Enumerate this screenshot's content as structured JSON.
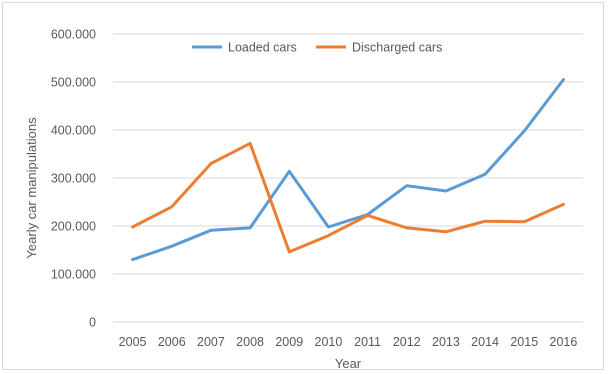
{
  "chart_data": {
    "type": "line",
    "title": "",
    "xlabel": "Year",
    "ylabel": "Yearly car manipulations",
    "categories": [
      "2005",
      "2006",
      "2007",
      "2008",
      "2009",
      "2010",
      "2011",
      "2012",
      "2013",
      "2014",
      "2015",
      "2016"
    ],
    "ylim": [
      0,
      600000
    ],
    "y_ticks": [
      0,
      100000,
      200000,
      300000,
      400000,
      500000,
      600000
    ],
    "y_tick_labels": [
      "0",
      "100.000",
      "200.000",
      "300.000",
      "400.000",
      "500.000",
      "600.000"
    ],
    "grid": true,
    "legend_position": "top",
    "series": [
      {
        "name": "Loaded cars",
        "color": "#5b9bd5",
        "values": [
          130000,
          158000,
          191000,
          196000,
          314000,
          198000,
          224000,
          284000,
          273000,
          308000,
          398000,
          505000
        ]
      },
      {
        "name": "Discharged cars",
        "color": "#ed7d31",
        "values": [
          198000,
          240000,
          330000,
          372000,
          146000,
          180000,
          222000,
          196000,
          188000,
          210000,
          209000,
          245000
        ]
      }
    ]
  }
}
